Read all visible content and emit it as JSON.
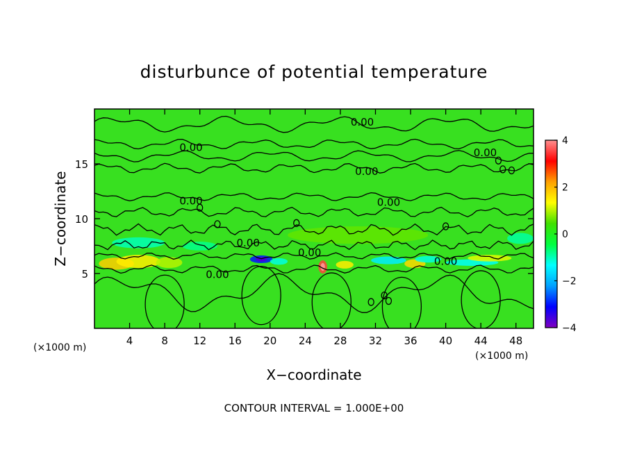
{
  "chart_data": {
    "type": "heatmap",
    "title": "disturbunce of potential temperature",
    "xlabel": "X−coordinate",
    "ylabel": "Z−coordinate",
    "x_unit_left": "(×1000 m)",
    "x_unit_right": "(×1000 m)",
    "footer": "CONTOUR INTERVAL = 1.000E+00",
    "xlim": [
      0,
      50
    ],
    "ylim": [
      0,
      20
    ],
    "x_ticks": [
      4,
      8,
      12,
      16,
      20,
      24,
      28,
      32,
      36,
      40,
      44,
      48
    ],
    "y_ticks": [
      5,
      10,
      15
    ],
    "colorbar": {
      "range": [
        -4,
        4
      ],
      "ticks": [
        -4,
        -2,
        0,
        2,
        4
      ],
      "colors": [
        "#8000c0",
        "#0000ff",
        "#00a0ff",
        "#00ffff",
        "#00ff40",
        "#40e000",
        "#ffff00",
        "#ffa000",
        "#ff0000",
        "#ff9090"
      ]
    },
    "contour_labels": [
      {
        "text": "0.00",
        "x": 30.5,
        "z": 18.8
      },
      {
        "text": "0.00",
        "x": 11.0,
        "z": 16.5
      },
      {
        "text": "0.00",
        "x": 44.5,
        "z": 16.0
      },
      {
        "text": "0.00",
        "x": 31.0,
        "z": 14.3
      },
      {
        "text": "0.00",
        "x": 33.5,
        "z": 11.5
      },
      {
        "text": "0.00",
        "x": 11.0,
        "z": 11.6
      },
      {
        "text": "0.00",
        "x": 17.5,
        "z": 7.8
      },
      {
        "text": "0.00",
        "x": 24.5,
        "z": 6.9
      },
      {
        "text": "0.00",
        "x": 40.0,
        "z": 6.1
      },
      {
        "text": "0.00",
        "x": 14.0,
        "z": 4.9
      }
    ],
    "features": [
      {
        "kind": "warm",
        "x": 2.5,
        "z": 5.9,
        "rx": 2.0,
        "rz": 0.55,
        "value": 1.8
      },
      {
        "kind": "warm",
        "x": 5.0,
        "z": 6.1,
        "rx": 2.5,
        "rz": 0.6,
        "value": 1.5
      },
      {
        "kind": "warm",
        "x": 8.5,
        "z": 6.0,
        "rx": 1.5,
        "rz": 0.5,
        "value": 1.0
      },
      {
        "kind": "cool",
        "x": 5.0,
        "z": 7.8,
        "rx": 3.0,
        "rz": 0.5,
        "value": -1.0
      },
      {
        "kind": "cool",
        "x": 12.0,
        "z": 7.5,
        "rx": 2.0,
        "rz": 0.4,
        "value": -0.8
      },
      {
        "kind": "cool",
        "x": 19.0,
        "z": 6.3,
        "rx": 1.3,
        "rz": 0.35,
        "value": -3.0
      },
      {
        "kind": "cool",
        "x": 21.0,
        "z": 6.1,
        "rx": 1.0,
        "rz": 0.3,
        "value": -1.2
      },
      {
        "kind": "warm",
        "x": 26.0,
        "z": 5.6,
        "rx": 0.5,
        "rz": 0.6,
        "value": 3.5
      },
      {
        "kind": "warm",
        "x": 28.5,
        "z": 5.8,
        "rx": 1.0,
        "rz": 0.35,
        "value": 1.5
      },
      {
        "kind": "cool",
        "x": 33.5,
        "z": 6.2,
        "rx": 2.0,
        "rz": 0.35,
        "value": -1.5
      },
      {
        "kind": "warm",
        "x": 36.5,
        "z": 5.9,
        "rx": 1.2,
        "rz": 0.4,
        "value": 1.7
      },
      {
        "kind": "cool",
        "x": 38.0,
        "z": 6.3,
        "rx": 1.5,
        "rz": 0.3,
        "value": -1.2
      },
      {
        "kind": "cool",
        "x": 43.0,
        "z": 6.0,
        "rx": 3.0,
        "rz": 0.3,
        "value": -1.3
      },
      {
        "kind": "warm",
        "x": 45.0,
        "z": 6.4,
        "rx": 2.5,
        "rz": 0.3,
        "value": 1.2
      },
      {
        "kind": "cool",
        "x": 48.5,
        "z": 8.2,
        "rx": 1.5,
        "rz": 0.5,
        "value": -0.9
      },
      {
        "kind": "warm",
        "x": 30.0,
        "z": 8.5,
        "rx": 8.0,
        "rz": 0.8,
        "value": 0.6
      }
    ]
  }
}
